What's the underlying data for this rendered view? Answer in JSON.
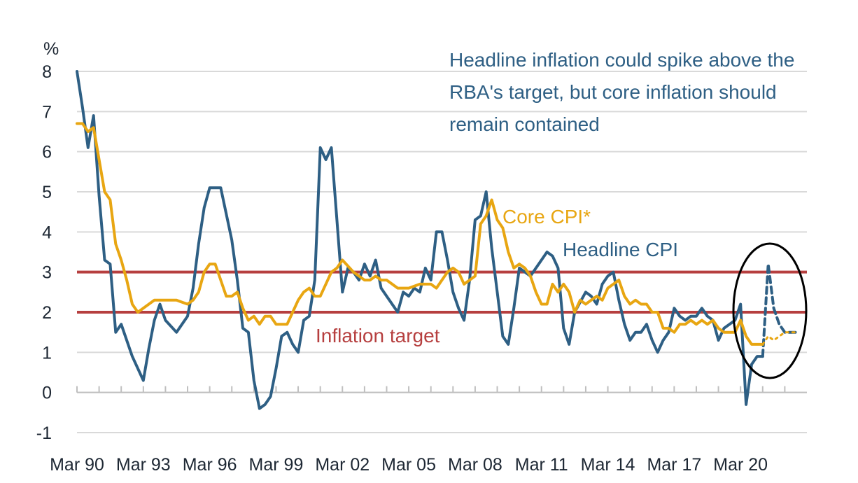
{
  "chart_data": {
    "type": "line",
    "ylabel": "%",
    "ylim": [
      -1,
      8
    ],
    "yticks": [
      -1,
      0,
      1,
      2,
      3,
      4,
      5,
      6,
      7,
      8
    ],
    "xticks": [
      "Mar 90",
      "Mar 93",
      "Mar 96",
      "Mar 99",
      "Mar 02",
      "Mar 05",
      "Mar 08",
      "Mar 11",
      "Mar 14",
      "Mar 17",
      "Mar 20"
    ],
    "grid": true,
    "annotation": "Headline inflation could spike above the RBA's target, but core inflation should remain contained",
    "colors": {
      "headline": "#2e5f84",
      "core": "#e8a612",
      "target": "#b63f3f",
      "grid": "#d9d9d9",
      "circle": "#000000"
    },
    "target_band": {
      "label": "Inflation target",
      "lower": 2,
      "upper": 3
    },
    "series": [
      {
        "name": "Headline CPI",
        "x": [
          1990.0,
          1990.25,
          1990.5,
          1990.75,
          1991.0,
          1991.25,
          1991.5,
          1991.75,
          1992.0,
          1992.5,
          1993.0,
          1993.25,
          1993.5,
          1993.75,
          1994.0,
          1994.5,
          1995.0,
          1995.25,
          1995.5,
          1995.75,
          1996.0,
          1996.5,
          1997.0,
          1997.25,
          1997.5,
          1997.75,
          1998.0,
          1998.25,
          1998.5,
          1998.75,
          1999.0,
          1999.25,
          1999.5,
          1999.75,
          2000.0,
          2000.25,
          2000.5,
          2000.75,
          2001.0,
          2001.25,
          2001.5,
          2002.0,
          2002.25,
          2002.5,
          2002.75,
          2003.0,
          2003.25,
          2003.5,
          2003.75,
          2004.0,
          2004.5,
          2004.75,
          2005.0,
          2005.25,
          2005.5,
          2005.75,
          2006.0,
          2006.25,
          2006.5,
          2006.75,
          2007.0,
          2007.25,
          2007.5,
          2007.75,
          2008.0,
          2008.25,
          2008.5,
          2008.75,
          2009.0,
          2009.25,
          2009.5,
          2009.75,
          2010.0,
          2010.5,
          2011.0,
          2011.25,
          2011.5,
          2011.75,
          2012.0,
          2012.25,
          2012.5,
          2013.0,
          2013.25,
          2013.5,
          2013.75,
          2014.0,
          2014.25,
          2014.5,
          2014.75,
          2015.0,
          2015.25,
          2015.5,
          2015.75,
          2016.0,
          2016.25,
          2016.5,
          2016.75,
          2017.0,
          2017.25,
          2017.5,
          2017.75,
          2018.0,
          2018.25,
          2018.5,
          2018.75,
          2019.0,
          2019.25,
          2019.5,
          2019.75,
          2020.0,
          2020.25,
          2020.5,
          2020.75,
          2021.0
        ],
        "y": [
          8.0,
          7.1,
          6.1,
          6.9,
          4.9,
          3.3,
          3.2,
          1.5,
          1.7,
          0.9,
          0.3,
          1.1,
          1.8,
          2.2,
          1.8,
          1.5,
          1.9,
          2.6,
          3.7,
          4.6,
          5.1,
          5.1,
          3.8,
          2.8,
          1.6,
          1.5,
          0.3,
          -0.4,
          -0.3,
          -0.1,
          0.6,
          1.4,
          1.5,
          1.2,
          1.0,
          1.8,
          1.9,
          2.8,
          6.1,
          5.8,
          6.1,
          2.5,
          3.1,
          3.0,
          2.8,
          3.2,
          2.9,
          3.3,
          2.6,
          2.4,
          2.0,
          2.5,
          2.4,
          2.6,
          2.5,
          3.1,
          2.8,
          4.0,
          4.0,
          3.3,
          2.5,
          2.1,
          1.8,
          2.8,
          4.3,
          4.4,
          5.0,
          3.6,
          2.5,
          1.4,
          1.2,
          2.1,
          3.1,
          2.9,
          3.3,
          3.5,
          3.4,
          3.1,
          1.6,
          1.2,
          2.0,
          2.5,
          2.4,
          2.2,
          2.7,
          2.9,
          3.0,
          2.3,
          1.7,
          1.3,
          1.5,
          1.5,
          1.7,
          1.3,
          1.0,
          1.3,
          1.5,
          2.1,
          1.9,
          1.8,
          1.9,
          1.9,
          2.1,
          1.9,
          1.8,
          1.3,
          1.6,
          1.7,
          1.8,
          2.2,
          -0.3,
          0.7,
          0.9,
          0.9
        ]
      },
      {
        "name": "Headline CPI (forecast)",
        "x": [
          2021.0,
          2021.25,
          2021.5,
          2021.75,
          2022.0,
          2022.5
        ],
        "y": [
          0.9,
          3.2,
          2.1,
          1.7,
          1.5,
          1.5
        ]
      },
      {
        "name": "Core CPI*",
        "x": [
          1990.0,
          1990.25,
          1990.5,
          1990.75,
          1991.0,
          1991.25,
          1991.5,
          1991.75,
          1992.0,
          1992.25,
          1992.5,
          1992.75,
          1993.0,
          1993.5,
          1993.75,
          1994.0,
          1994.5,
          1995.0,
          1995.25,
          1995.5,
          1995.75,
          1996.0,
          1996.25,
          1996.5,
          1996.75,
          1997.0,
          1997.25,
          1997.5,
          1997.75,
          1998.0,
          1998.25,
          1998.5,
          1998.75,
          1999.0,
          1999.25,
          1999.5,
          1999.75,
          2000.0,
          2000.25,
          2000.5,
          2000.75,
          2001.0,
          2001.25,
          2001.5,
          2001.75,
          2002.0,
          2002.5,
          2002.75,
          2003.0,
          2003.25,
          2003.5,
          2003.75,
          2004.0,
          2004.5,
          2004.75,
          2005.0,
          2005.5,
          2005.75,
          2006.0,
          2006.25,
          2006.5,
          2006.75,
          2007.0,
          2007.25,
          2007.5,
          2007.75,
          2008.0,
          2008.25,
          2008.5,
          2008.75,
          2009.0,
          2009.25,
          2009.5,
          2009.75,
          2010.0,
          2010.25,
          2010.5,
          2010.75,
          2011.0,
          2011.25,
          2011.5,
          2011.75,
          2012.0,
          2012.25,
          2012.5,
          2012.75,
          2013.0,
          2013.25,
          2013.5,
          2013.75,
          2014.0,
          2014.25,
          2014.5,
          2014.75,
          2015.0,
          2015.25,
          2015.5,
          2015.75,
          2016.0,
          2016.25,
          2016.5,
          2016.75,
          2017.0,
          2017.25,
          2017.5,
          2017.75,
          2018.0,
          2018.25,
          2018.5,
          2018.75,
          2019.0,
          2019.25,
          2019.5,
          2019.75,
          2020.0,
          2020.25,
          2020.5,
          2020.75,
          2021.0
        ],
        "y": [
          6.7,
          6.7,
          6.5,
          6.6,
          5.8,
          5.0,
          4.8,
          3.7,
          3.3,
          2.8,
          2.2,
          2.0,
          2.1,
          2.3,
          2.3,
          2.3,
          2.3,
          2.2,
          2.3,
          2.5,
          3.0,
          3.2,
          3.2,
          2.8,
          2.4,
          2.4,
          2.5,
          2.1,
          1.8,
          1.9,
          1.7,
          1.9,
          1.9,
          1.7,
          1.7,
          1.7,
          2.0,
          2.3,
          2.5,
          2.6,
          2.4,
          2.4,
          2.7,
          3.0,
          3.1,
          3.3,
          3.0,
          2.9,
          2.8,
          2.8,
          2.9,
          2.8,
          2.8,
          2.6,
          2.6,
          2.6,
          2.7,
          2.7,
          2.7,
          2.6,
          2.8,
          3.0,
          3.1,
          3.0,
          2.7,
          2.8,
          2.9,
          4.2,
          4.4,
          4.8,
          4.3,
          4.1,
          3.5,
          3.1,
          3.2,
          3.1,
          2.9,
          2.5,
          2.2,
          2.2,
          2.7,
          2.5,
          2.7,
          2.5,
          2.0,
          2.3,
          2.2,
          2.3,
          2.4,
          2.3,
          2.6,
          2.7,
          2.8,
          2.4,
          2.2,
          2.3,
          2.2,
          2.2,
          2.0,
          2.0,
          1.6,
          1.6,
          1.5,
          1.7,
          1.7,
          1.8,
          1.7,
          1.8,
          1.7,
          1.8,
          1.6,
          1.5,
          1.5,
          1.5,
          1.8,
          1.4,
          1.2,
          1.2,
          1.2
        ]
      },
      {
        "name": "Core CPI* (forecast)",
        "x": [
          2021.0,
          2021.25,
          2021.5,
          2021.75,
          2022.0,
          2022.5
        ],
        "y": [
          1.2,
          1.4,
          1.3,
          1.4,
          1.5,
          1.5
        ]
      }
    ]
  },
  "labels": {
    "ylabel": "%",
    "annotation_lines": [
      "Headline inflation could spike above the",
      "RBA's target, but core inflation should",
      "remain contained"
    ],
    "core": "Core CPI*",
    "headline": "Headline CPI",
    "target": "Inflation target"
  }
}
